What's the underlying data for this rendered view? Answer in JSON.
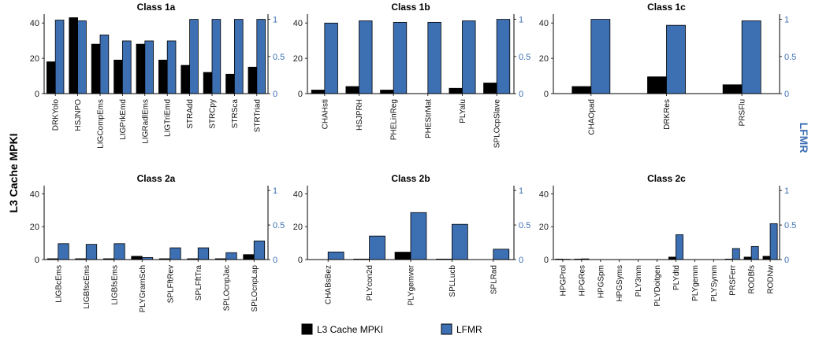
{
  "colors": {
    "mpki": "#000000",
    "lfmr": "#3d6fb3",
    "right_axis": "#3d6fb3",
    "bar_stroke": "#000000"
  },
  "axes": {
    "left_label": "L3 Cache MPKI",
    "right_label": "LFMR",
    "left_ticks": [
      "0",
      "20",
      "40"
    ],
    "right_ticks": [
      "0",
      "0.5",
      "1"
    ]
  },
  "legend": {
    "mpki_label": "L3 Cache MPKI",
    "lfmr_label": "LFMR",
    "position": "bottom"
  },
  "chart_data": [
    {
      "type": "bar",
      "title": "Class 1a",
      "ylim_left": [
        0,
        45
      ],
      "ylim_right": [
        0,
        1.07
      ],
      "categories": [
        "DRKYolo",
        "HSJNPO",
        "LIGCompEms",
        "LIGPrkEmd",
        "LIGRadlEms",
        "LIGTriEmd",
        "STRAdd",
        "STRCpy",
        "STRSca",
        "STRTriad"
      ],
      "series": [
        {
          "axis": "left",
          "values": [
            18,
            43,
            28,
            19,
            28,
            19,
            16,
            12,
            11,
            15
          ]
        },
        {
          "axis": "right",
          "values": [
            0.99,
            0.98,
            0.79,
            0.71,
            0.71,
            0.71,
            1.0,
            1.0,
            1.0,
            1.0
          ]
        }
      ]
    },
    {
      "type": "bar",
      "title": "Class 1b",
      "ylim_left": [
        0,
        45
      ],
      "ylim_right": [
        0,
        1.07
      ],
      "categories": [
        "CHAHsti",
        "HSJPRH",
        "PHELinReg",
        "PHEStrMat",
        "PLYalu",
        "SPLOcpSlave"
      ],
      "series": [
        {
          "axis": "left",
          "values": [
            2,
            4,
            2,
            0,
            3,
            6
          ]
        },
        {
          "axis": "right",
          "values": [
            0.95,
            0.98,
            0.96,
            0.96,
            0.98,
            1.0
          ]
        }
      ]
    },
    {
      "type": "bar",
      "title": "Class 1c",
      "ylim_left": [
        0,
        45
      ],
      "ylim_right": [
        0,
        1.07
      ],
      "categories": [
        "CHAOpad",
        "DRKRes",
        "PRSFlu"
      ],
      "series": [
        {
          "axis": "left",
          "values": [
            4,
            9.5,
            5
          ]
        },
        {
          "axis": "right",
          "values": [
            1.0,
            0.92,
            0.98
          ]
        }
      ]
    },
    {
      "type": "bar",
      "title": "Class 2a",
      "ylim_left": [
        0,
        45
      ],
      "ylim_right": [
        0,
        1.07
      ],
      "categories": [
        "LIGBcEms",
        "LIGBfscEms",
        "LIGBfsEms",
        "PLYGramSch",
        "SPLFftRev",
        "SPLFftTra",
        "SPLOcnpJac",
        "SPLOcnpLap"
      ],
      "series": [
        {
          "axis": "left",
          "values": [
            0.5,
            0.5,
            0.5,
            2,
            0.5,
            0.5,
            0.5,
            3
          ]
        },
        {
          "axis": "right",
          "values": [
            0.23,
            0.22,
            0.23,
            0.03,
            0.17,
            0.17,
            0.1,
            0.27
          ]
        }
      ]
    },
    {
      "type": "bar",
      "title": "Class 2b",
      "ylim_left": [
        0,
        45
      ],
      "ylim_right": [
        0,
        1.07
      ],
      "categories": [
        "CHABsBez",
        "PLYcon2d",
        "PLYgemver",
        "SPLLucb",
        "SPLRad"
      ],
      "series": [
        {
          "axis": "left",
          "values": [
            0,
            0.3,
            4.5,
            0.3,
            0
          ]
        },
        {
          "axis": "right",
          "values": [
            0.11,
            0.34,
            0.68,
            0.51,
            0.15
          ]
        }
      ]
    },
    {
      "type": "bar",
      "title": "Class 2c",
      "ylim_left": [
        0,
        45
      ],
      "ylim_right": [
        0,
        1.07
      ],
      "categories": [
        "HPGProl",
        "HPGRes",
        "HPGSpm",
        "HPGSyms",
        "PLY3mm",
        "PLYDoitgen",
        "PLYdtd",
        "PLYgemm",
        "PLYSymm",
        "PRSFerr",
        "RODBfs",
        "RODNw"
      ],
      "series": [
        {
          "axis": "left",
          "values": [
            0.3,
            0.3,
            0,
            0,
            0,
            0,
            1.5,
            0,
            0,
            0.3,
            1.5,
            2
          ]
        },
        {
          "axis": "right",
          "values": [
            0.005,
            0.01,
            0,
            0,
            0,
            0,
            0.36,
            0,
            0,
            0.16,
            0.19,
            0.52
          ]
        }
      ]
    }
  ]
}
